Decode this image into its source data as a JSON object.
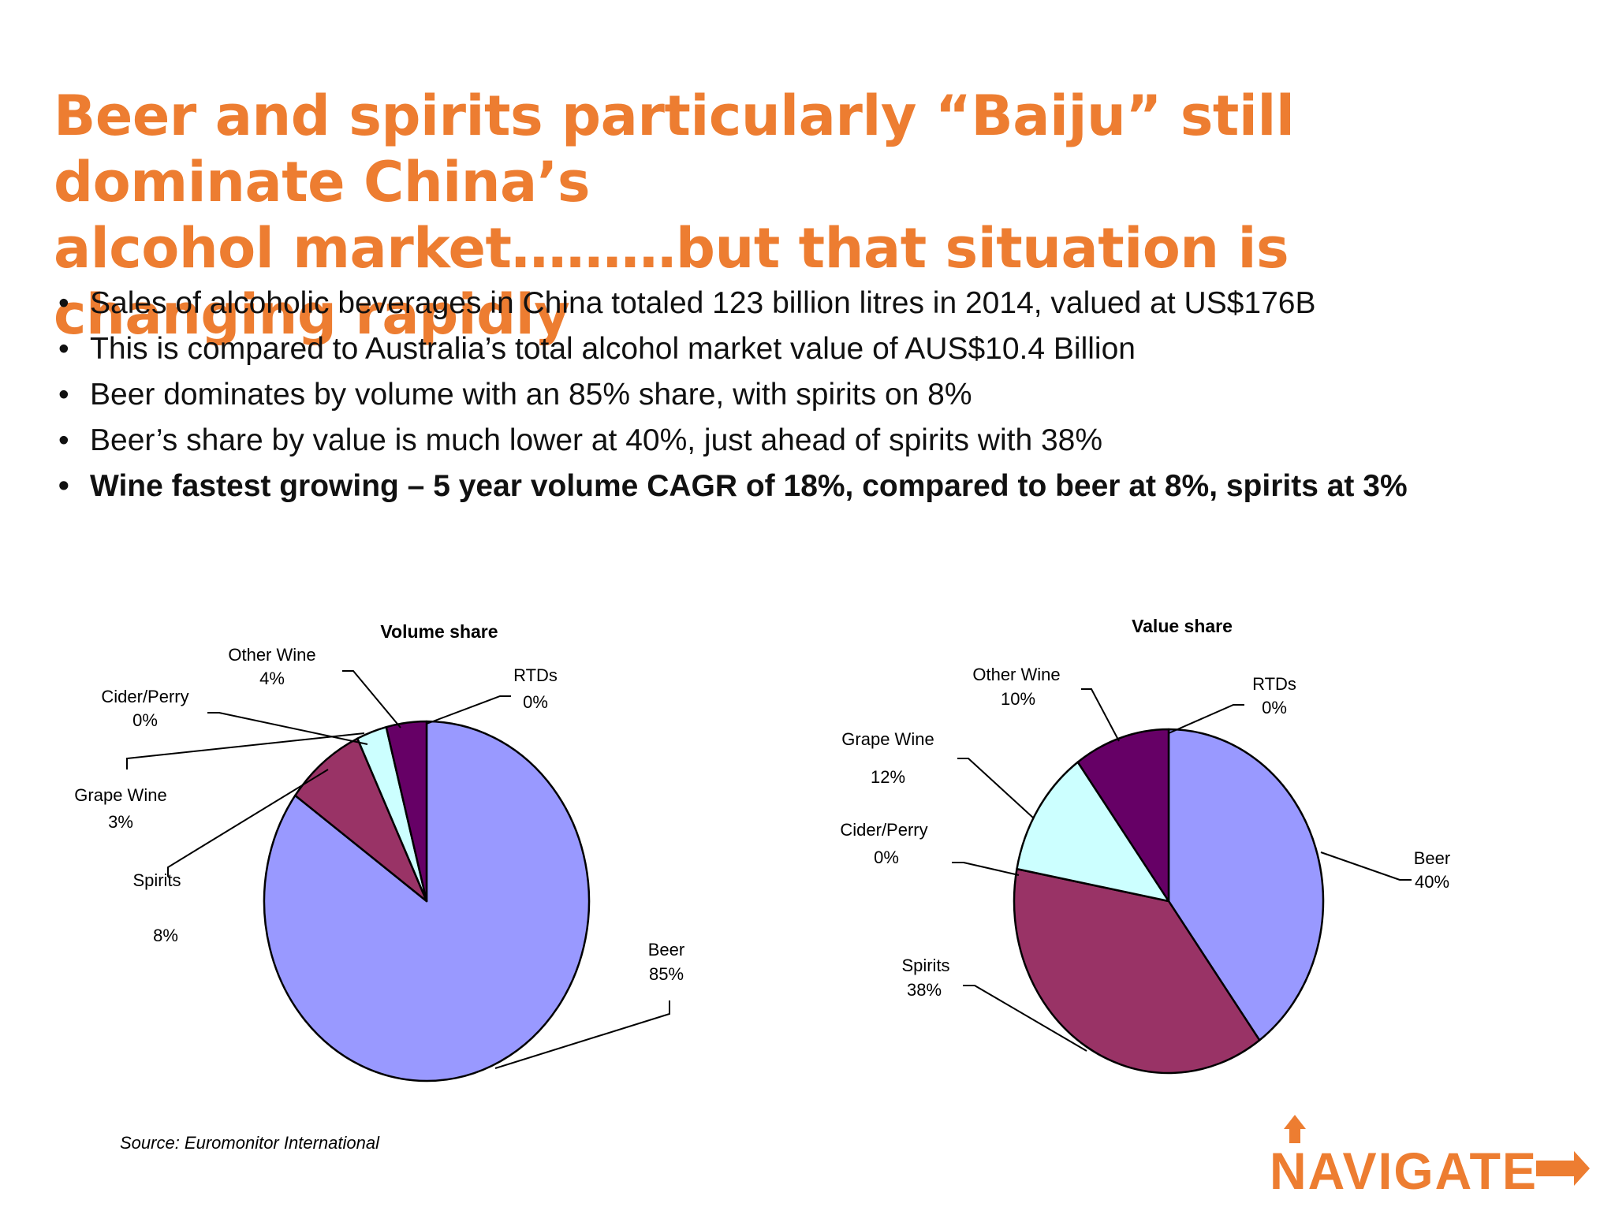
{
  "title_lines": [
    "Beer and spirits particularly “Baiju” still dominate China’s",
    "alcohol market………but that situation is changing rapidly"
  ],
  "bullets": [
    {
      "text": "Sales of alcoholic beverages in China totaled 123 billion litres in 2014, valued at  US$176B",
      "bold": false
    },
    {
      "text": "This is compared to Australia’s total alcohol market value of AUS$10.4 Billion",
      "bold": false
    },
    {
      "text": "Beer dominates by volume with an 85% share, with spirits on 8%",
      "bold": false
    },
    {
      "text": "Beer’s share by value is much lower at 40%, just ahead of spirits with 38%",
      "bold": false
    },
    {
      "text": "Wine fastest growing – 5 year volume CAGR of 18%, compared to beer at 8%, spirits at 3%",
      "bold": true
    }
  ],
  "chart_data": [
    {
      "type": "pie",
      "title": "Volume share",
      "slices": [
        {
          "name": "Beer",
          "value": 85,
          "label": "85%",
          "color": "#9999FF"
        },
        {
          "name": "Spirits",
          "value": 8,
          "label": "8%",
          "color": "#993366"
        },
        {
          "name": "Grape Wine",
          "value": 3,
          "label": "3%",
          "color": "#CCFFFF"
        },
        {
          "name": "Cider/Perry",
          "value": 0,
          "label": "0%",
          "color": "#FFFFCC"
        },
        {
          "name": "Other Wine",
          "value": 4,
          "label": "4%",
          "color": "#660066"
        },
        {
          "name": "RTDs",
          "value": 0,
          "label": "0%",
          "color": "#FF8080"
        }
      ]
    },
    {
      "type": "pie",
      "title": "Value share",
      "slices": [
        {
          "name": "Beer",
          "value": 40,
          "label": "40%",
          "color": "#9999FF"
        },
        {
          "name": "Spirits",
          "value": 38,
          "label": "38%",
          "color": "#993366"
        },
        {
          "name": "Cider/Perry",
          "value": 0,
          "label": "0%",
          "color": "#FFFFCC"
        },
        {
          "name": "Grape Wine",
          "value": 12,
          "label": "12%",
          "color": "#CCFFFF"
        },
        {
          "name": "Other Wine",
          "value": 10,
          "label": "10%",
          "color": "#660066"
        },
        {
          "name": "RTDs",
          "value": 0,
          "label": "0%",
          "color": "#FF8080"
        }
      ]
    }
  ],
  "source": "Source: Euromonitor International",
  "logo": {
    "text": "NAVIGATE",
    "color": "#ED7D31"
  }
}
